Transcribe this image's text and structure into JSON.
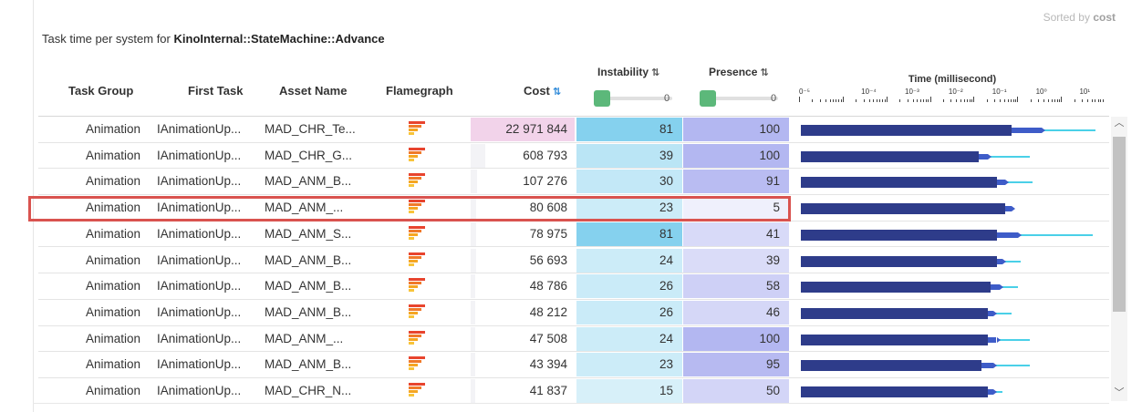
{
  "sorted": {
    "prefix": "Sorted by",
    "key": "cost"
  },
  "subtitle": {
    "prefix": "Task time per system for",
    "system": "KinoInternal::StateMachine::Advance"
  },
  "headers": {
    "task_group": "Task Group",
    "first_task": "First Task",
    "asset_name": "Asset Name",
    "flamegraph": "Flamegraph",
    "cost": "Cost",
    "instability": "Instability",
    "presence": "Presence",
    "time": "Time (millisecond)"
  },
  "filters": {
    "instability_min": "0",
    "presence_min": "0"
  },
  "time_axis": {
    "scale": "log",
    "labels": [
      "0⁻⁵",
      "10⁻⁴",
      "10⁻³",
      "10⁻²",
      "10⁻¹",
      "10⁰",
      "10¹"
    ]
  },
  "colors": {
    "cost_fill": "#f2d3ea",
    "instability_fill": "#86d3ee",
    "presence_fill": "#b9bdf1",
    "bar": "#2e3c8a",
    "whisker": "#4ad0e8",
    "highlight": "#d9534f",
    "slider_thumb": "#5cb87a"
  },
  "rows": [
    {
      "group": "Animation",
      "first": "IAnimationUp...",
      "asset": "MAD_CHR_Te...",
      "cost": "22 971 844",
      "instability": "81",
      "presence": "100",
      "bar": 0.7,
      "ext": 0.1,
      "line": 0.98
    },
    {
      "group": "Animation",
      "first": "IAnimationUp...",
      "asset": "MAD_CHR_G...",
      "cost": "608 793",
      "instability": "39",
      "presence": "100",
      "bar": 0.59,
      "ext": 0.03,
      "line": 0.76
    },
    {
      "group": "Animation",
      "first": "IAnimationUp...",
      "asset": "MAD_ANM_B...",
      "cost": "107 276",
      "instability": "30",
      "presence": "91",
      "bar": 0.65,
      "ext": 0.03,
      "line": 0.77
    },
    {
      "group": "Animation",
      "first": "IAnimationUp...",
      "asset": "MAD_ANM_...",
      "cost": "80 608",
      "instability": "23",
      "presence": "5",
      "bar": 0.68,
      "ext": 0.02,
      "line": 0.7
    },
    {
      "group": "Animation",
      "first": "IAnimationUp...",
      "asset": "MAD_ANM_S...",
      "cost": "78 975",
      "instability": "81",
      "presence": "41",
      "bar": 0.65,
      "ext": 0.07,
      "line": 0.97
    },
    {
      "group": "Animation",
      "first": "IAnimationUp...",
      "asset": "MAD_ANM_B...",
      "cost": "56 693",
      "instability": "24",
      "presence": "39",
      "bar": 0.65,
      "ext": 0.02,
      "line": 0.73
    },
    {
      "group": "Animation",
      "first": "IAnimationUp...",
      "asset": "MAD_ANM_B...",
      "cost": "48 786",
      "instability": "26",
      "presence": "58",
      "bar": 0.63,
      "ext": 0.03,
      "line": 0.72
    },
    {
      "group": "Animation",
      "first": "IAnimationUp...",
      "asset": "MAD_ANM_B...",
      "cost": "48 212",
      "instability": "26",
      "presence": "46",
      "bar": 0.62,
      "ext": 0.02,
      "line": 0.7
    },
    {
      "group": "Animation",
      "first": "IAnimationUp...",
      "asset": "MAD_ANM_...",
      "cost": "47 508",
      "instability": "24",
      "presence": "100",
      "bar": 0.62,
      "ext": 0.03,
      "line": 0.76
    },
    {
      "group": "Animation",
      "first": "IAnimationUp...",
      "asset": "MAD_ANM_B...",
      "cost": "43 394",
      "instability": "23",
      "presence": "95",
      "bar": 0.6,
      "ext": 0.04,
      "line": 0.76
    },
    {
      "group": "Animation",
      "first": "IAnimationUp...",
      "asset": "MAD_CHR_N...",
      "cost": "41 837",
      "instability": "15",
      "presence": "50",
      "bar": 0.62,
      "ext": 0.02,
      "line": 0.67
    }
  ],
  "cost_fill_fraction": [
    1.0,
    0.14,
    0.06,
    0.05,
    0.05,
    0.05,
    0.04,
    0.04,
    0.04,
    0.04,
    0.04
  ],
  "icons": {
    "flamegraph": "flame-icon",
    "scroll_up": "chevron-up-icon",
    "scroll_down": "chevron-down-icon"
  }
}
